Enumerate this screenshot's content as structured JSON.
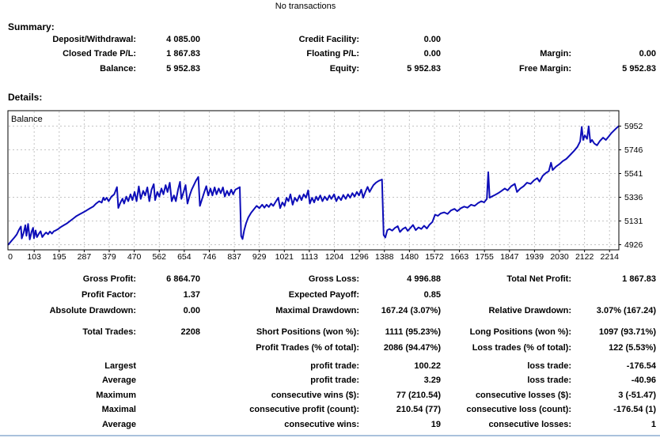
{
  "header": {
    "no_transactions": "No transactions"
  },
  "summary": {
    "title": "Summary:",
    "rows": [
      [
        "Deposit/Withdrawal:",
        "4 085.00",
        "Credit Facility:",
        "0.00",
        "",
        ""
      ],
      [
        "Closed Trade P/L:",
        "1 867.83",
        "Floating P/L:",
        "0.00",
        "Margin:",
        "0.00"
      ],
      [
        "Balance:",
        "5 952.83",
        "Equity:",
        "5 952.83",
        "Free Margin:",
        "5 952.83"
      ]
    ]
  },
  "details": {
    "title": "Details:"
  },
  "chart_data": {
    "type": "line",
    "title": "Balance",
    "legend": [
      "Balance"
    ],
    "line_color": "#0D0DB8",
    "grid_color": "#C4C4C4",
    "border_color": "#000000",
    "x_ticks": [
      "0",
      "103",
      "195",
      "287",
      "379",
      "470",
      "562",
      "654",
      "746",
      "837",
      "929",
      "1021",
      "1113",
      "1204",
      "1296",
      "1388",
      "1480",
      "1572",
      "1663",
      "1755",
      "1847",
      "1939",
      "2030",
      "2122",
      "2214"
    ],
    "y_ticks": [
      "5952",
      "5746",
      "5541",
      "5336",
      "5131",
      "4926"
    ],
    "xlabel": "",
    "ylabel": "",
    "xlim": [
      0,
      2208
    ],
    "ylim": [
      4926,
      5952
    ],
    "grid": true,
    "points": [
      [
        0,
        4923
      ],
      [
        8,
        4945
      ],
      [
        16,
        4968
      ],
      [
        24,
        4990
      ],
      [
        32,
        5015
      ],
      [
        40,
        5055
      ],
      [
        47,
        5083
      ],
      [
        50,
        4980
      ],
      [
        57,
        5030
      ],
      [
        63,
        5094
      ],
      [
        67,
        5003
      ],
      [
        73,
        5106
      ],
      [
        79,
        4971
      ],
      [
        86,
        5042
      ],
      [
        91,
        5072
      ],
      [
        94,
        4982
      ],
      [
        100,
        5049
      ],
      [
        105,
        4992
      ],
      [
        112,
        5022
      ],
      [
        118,
        5042
      ],
      [
        124,
        4992
      ],
      [
        131,
        5014
      ],
      [
        138,
        5032
      ],
      [
        145,
        5016
      ],
      [
        152,
        5040
      ],
      [
        159,
        5022
      ],
      [
        166,
        5042
      ],
      [
        173,
        5050
      ],
      [
        182,
        5062
      ],
      [
        192,
        5080
      ],
      [
        202,
        5094
      ],
      [
        212,
        5108
      ],
      [
        224,
        5130
      ],
      [
        236,
        5152
      ],
      [
        248,
        5174
      ],
      [
        260,
        5190
      ],
      [
        272,
        5206
      ],
      [
        284,
        5222
      ],
      [
        296,
        5240
      ],
      [
        308,
        5256
      ],
      [
        318,
        5280
      ],
      [
        330,
        5302
      ],
      [
        339,
        5290
      ],
      [
        345,
        5334
      ],
      [
        350,
        5312
      ],
      [
        357,
        5332
      ],
      [
        364,
        5302
      ],
      [
        374,
        5342
      ],
      [
        384,
        5362
      ],
      [
        394,
        5424
      ],
      [
        399,
        5244
      ],
      [
        407,
        5292
      ],
      [
        414,
        5324
      ],
      [
        420,
        5282
      ],
      [
        428,
        5342
      ],
      [
        435,
        5302
      ],
      [
        443,
        5362
      ],
      [
        450,
        5312
      ],
      [
        458,
        5382
      ],
      [
        465,
        5302
      ],
      [
        473,
        5430
      ],
      [
        480,
        5322
      ],
      [
        489,
        5392
      ],
      [
        496,
        5352
      ],
      [
        504,
        5422
      ],
      [
        511,
        5302
      ],
      [
        519,
        5402
      ],
      [
        527,
        5450
      ],
      [
        532,
        5312
      ],
      [
        540,
        5382
      ],
      [
        547,
        5342
      ],
      [
        555,
        5412
      ],
      [
        562,
        5362
      ],
      [
        570,
        5442
      ],
      [
        577,
        5382
      ],
      [
        585,
        5462
      ],
      [
        592,
        5302
      ],
      [
        600,
        5352
      ],
      [
        607,
        5302
      ],
      [
        615,
        5402
      ],
      [
        622,
        5470
      ],
      [
        627,
        5322
      ],
      [
        635,
        5382
      ],
      [
        642,
        5442
      ],
      [
        649,
        5282
      ],
      [
        657,
        5352
      ],
      [
        664,
        5402
      ],
      [
        672,
        5442
      ],
      [
        680,
        5482
      ],
      [
        688,
        5512
      ],
      [
        694,
        5262
      ],
      [
        702,
        5322
      ],
      [
        710,
        5382
      ],
      [
        717,
        5432
      ],
      [
        724,
        5352
      ],
      [
        732,
        5412
      ],
      [
        739,
        5352
      ],
      [
        747,
        5422
      ],
      [
        754,
        5362
      ],
      [
        762,
        5412
      ],
      [
        769,
        5372
      ],
      [
        777,
        5422
      ],
      [
        784,
        5342
      ],
      [
        792,
        5392
      ],
      [
        799,
        5352
      ],
      [
        807,
        5402
      ],
      [
        814,
        5362
      ],
      [
        822,
        5402
      ],
      [
        830,
        5412
      ],
      [
        838,
        5424
      ],
      [
        843,
        5002
      ],
      [
        848,
        4975
      ],
      [
        854,
        5052
      ],
      [
        861,
        5112
      ],
      [
        869,
        5162
      ],
      [
        879,
        5202
      ],
      [
        889,
        5232
      ],
      [
        899,
        5262
      ],
      [
        909,
        5242
      ],
      [
        919,
        5272
      ],
      [
        927,
        5246
      ],
      [
        935,
        5272
      ],
      [
        943,
        5252
      ],
      [
        951,
        5282
      ],
      [
        959,
        5262
      ],
      [
        969,
        5302
      ],
      [
        977,
        5332
      ],
      [
        984,
        5242
      ],
      [
        992,
        5292
      ],
      [
        1000,
        5262
      ],
      [
        1007,
        5332
      ],
      [
        1014,
        5302
      ],
      [
        1021,
        5362
      ],
      [
        1029,
        5272
      ],
      [
        1037,
        5332
      ],
      [
        1045,
        5302
      ],
      [
        1054,
        5352
      ],
      [
        1061,
        5312
      ],
      [
        1069,
        5362
      ],
      [
        1077,
        5332
      ],
      [
        1085,
        5396
      ],
      [
        1091,
        5282
      ],
      [
        1099,
        5332
      ],
      [
        1107,
        5292
      ],
      [
        1114,
        5342
      ],
      [
        1121,
        5312
      ],
      [
        1129,
        5352
      ],
      [
        1137,
        5302
      ],
      [
        1145,
        5342
      ],
      [
        1154,
        5312
      ],
      [
        1162,
        5352
      ],
      [
        1169,
        5322
      ],
      [
        1179,
        5362
      ],
      [
        1187,
        5302
      ],
      [
        1195,
        5342
      ],
      [
        1204,
        5312
      ],
      [
        1212,
        5356
      ],
      [
        1221,
        5322
      ],
      [
        1229,
        5362
      ],
      [
        1237,
        5332
      ],
      [
        1245,
        5372
      ],
      [
        1253,
        5342
      ],
      [
        1261,
        5382
      ],
      [
        1269,
        5352
      ],
      [
        1277,
        5402
      ],
      [
        1284,
        5332
      ],
      [
        1292,
        5382
      ],
      [
        1300,
        5426
      ],
      [
        1307,
        5382
      ],
      [
        1314,
        5412
      ],
      [
        1321,
        5442
      ],
      [
        1330,
        5462
      ],
      [
        1340,
        5478
      ],
      [
        1352,
        5490
      ],
      [
        1358,
        5010
      ],
      [
        1364,
        4988
      ],
      [
        1371,
        5052
      ],
      [
        1379,
        5062
      ],
      [
        1389,
        5048
      ],
      [
        1399,
        5072
      ],
      [
        1409,
        5086
      ],
      [
        1417,
        5036
      ],
      [
        1427,
        5062
      ],
      [
        1437,
        5076
      ],
      [
        1445,
        5046
      ],
      [
        1455,
        5072
      ],
      [
        1464,
        5096
      ],
      [
        1474,
        5052
      ],
      [
        1484,
        5076
      ],
      [
        1494,
        5062
      ],
      [
        1504,
        5090
      ],
      [
        1514,
        5066
      ],
      [
        1524,
        5100
      ],
      [
        1534,
        5122
      ],
      [
        1544,
        5186
      ],
      [
        1554,
        5176
      ],
      [
        1564,
        5196
      ],
      [
        1577,
        5206
      ],
      [
        1589,
        5192
      ],
      [
        1601,
        5222
      ],
      [
        1614,
        5236
      ],
      [
        1624,
        5216
      ],
      [
        1637,
        5242
      ],
      [
        1649,
        5256
      ],
      [
        1661,
        5246
      ],
      [
        1674,
        5272
      ],
      [
        1687,
        5262
      ],
      [
        1699,
        5286
      ],
      [
        1711,
        5302
      ],
      [
        1721,
        5292
      ],
      [
        1731,
        5322
      ],
      [
        1736,
        5554
      ],
      [
        1741,
        5332
      ],
      [
        1748,
        5342
      ],
      [
        1760,
        5356
      ],
      [
        1772,
        5372
      ],
      [
        1784,
        5392
      ],
      [
        1796,
        5412
      ],
      [
        1806,
        5396
      ],
      [
        1819,
        5432
      ],
      [
        1832,
        5452
      ],
      [
        1840,
        5382
      ],
      [
        1852,
        5412
      ],
      [
        1864,
        5432
      ],
      [
        1876,
        5462
      ],
      [
        1889,
        5452
      ],
      [
        1901,
        5482
      ],
      [
        1913,
        5502
      ],
      [
        1921,
        5472
      ],
      [
        1933,
        5522
      ],
      [
        1945,
        5548
      ],
      [
        1955,
        5562
      ],
      [
        1963,
        5635
      ],
      [
        1969,
        5572
      ],
      [
        1981,
        5602
      ],
      [
        1993,
        5622
      ],
      [
        2005,
        5648
      ],
      [
        2018,
        5668
      ],
      [
        2032,
        5702
      ],
      [
        2046,
        5738
      ],
      [
        2058,
        5772
      ],
      [
        2068,
        5820
      ],
      [
        2074,
        5945
      ],
      [
        2079,
        5832
      ],
      [
        2085,
        5872
      ],
      [
        2093,
        5842
      ],
      [
        2099,
        5950
      ],
      [
        2105,
        5812
      ],
      [
        2111,
        5832
      ],
      [
        2119,
        5802
      ],
      [
        2129,
        5786
      ],
      [
        2139,
        5822
      ],
      [
        2151,
        5852
      ],
      [
        2161,
        5832
      ],
      [
        2171,
        5862
      ],
      [
        2181,
        5892
      ],
      [
        2191,
        5916
      ],
      [
        2200,
        5936
      ],
      [
        2208,
        5952.83
      ]
    ]
  },
  "stats": {
    "section1": [
      [
        "Gross Profit:",
        "6 864.70",
        "Gross Loss:",
        "4 996.88",
        "Total Net Profit:",
        "1 867.83"
      ],
      [
        "Profit Factor:",
        "1.37",
        "Expected Payoff:",
        "0.85",
        "",
        ""
      ],
      [
        "Absolute Drawdown:",
        "0.00",
        "Maximal Drawdown:",
        "167.24 (3.07%)",
        "Relative Drawdown:",
        "3.07% (167.24)"
      ]
    ],
    "section2": [
      [
        "Total Trades:",
        "2208",
        "Short Positions (won %):",
        "1111 (95.23%)",
        "Long Positions (won %):",
        "1097 (93.71%)"
      ],
      [
        "",
        "",
        "Profit Trades (% of total):",
        "2086 (94.47%)",
        "Loss trades (% of total):",
        "122 (5.53%)"
      ]
    ],
    "section3": [
      [
        "Largest",
        "",
        "profit trade:",
        "100.22",
        "loss trade:",
        "-176.54"
      ],
      [
        "Average",
        "",
        "profit trade:",
        "3.29",
        "loss trade:",
        "-40.96"
      ],
      [
        "Maximum",
        "",
        "consecutive wins ($):",
        "77 (210.54)",
        "consecutive losses ($):",
        "3 (-51.47)"
      ],
      [
        "Maximal",
        "",
        "consecutive profit (count):",
        "210.54 (77)",
        "consecutive loss (count):",
        "-176.54 (1)"
      ],
      [
        "Average",
        "",
        "consecutive wins:",
        "19",
        "consecutive losses:",
        "1"
      ]
    ]
  }
}
